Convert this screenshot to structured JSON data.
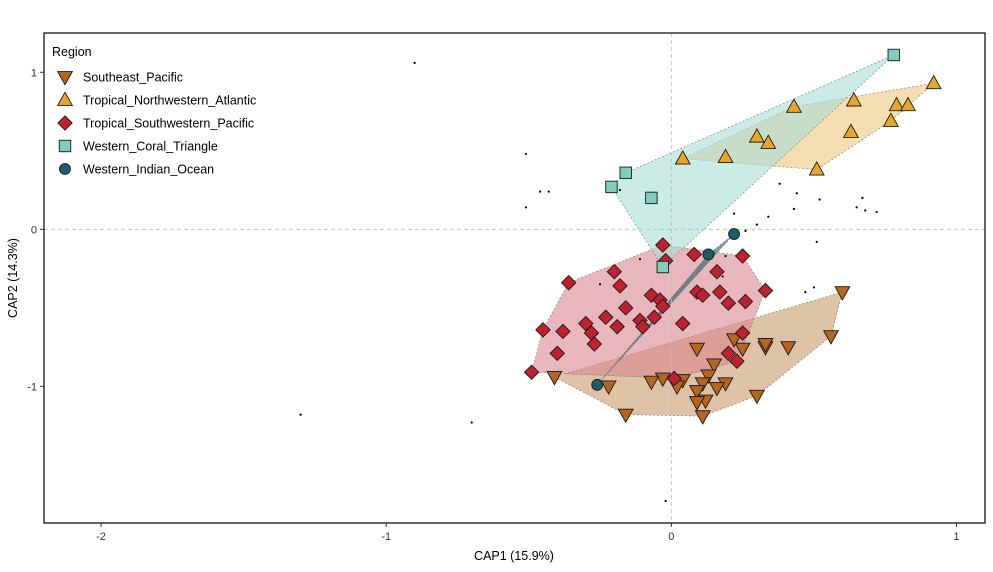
{
  "chart_data": {
    "type": "scatter",
    "xlabel": "CAP1 (15.9%)",
    "ylabel": "CAP2 (14.3%)",
    "xlim": [
      -2.2,
      1.1
    ],
    "ylim": [
      -1.87,
      1.25
    ],
    "xticks": [
      -2,
      -1,
      0,
      1
    ],
    "xtick_labels": [
      "-2",
      "-1",
      "0",
      "1"
    ],
    "yticks": [
      -1,
      0,
      1
    ],
    "ytick_labels": [
      "-1",
      "0",
      "1"
    ],
    "reference_lines": {
      "x": 0,
      "y": 0,
      "style": "dashed"
    },
    "grid": false,
    "legend": {
      "title": "Region",
      "position": "top-left inside"
    },
    "series": [
      {
        "name": "Southeast_Pacific",
        "marker": "triangle-down",
        "fill": "#B5651D",
        "hull_fill": "#C89A6A",
        "points": [
          [
            0.6,
            -0.4
          ],
          [
            0.56,
            -0.68
          ],
          [
            0.33,
            -0.75
          ],
          [
            0.25,
            -0.76
          ],
          [
            0.41,
            -0.75
          ],
          [
            0.33,
            -0.73
          ],
          [
            0.22,
            -0.7
          ],
          [
            0.09,
            -0.76
          ],
          [
            0.15,
            -0.86
          ],
          [
            0.13,
            -0.93
          ],
          [
            0.04,
            -0.96
          ],
          [
            0.11,
            -0.98
          ],
          [
            0.19,
            -0.98
          ],
          [
            0.09,
            -1.03
          ],
          [
            0.12,
            -1.09
          ],
          [
            0.3,
            -1.06
          ],
          [
            0.16,
            -1.01
          ],
          [
            -0.03,
            -0.95
          ],
          [
            -0.07,
            -0.97
          ],
          [
            -0.22,
            -1.0
          ],
          [
            -0.41,
            -0.94
          ],
          [
            -0.16,
            -1.18
          ],
          [
            0.11,
            -1.19
          ],
          [
            0.09,
            -1.1
          ],
          [
            0.02,
            -1.0
          ]
        ]
      },
      {
        "name": "Tropical_Northwestern_Atlantic",
        "marker": "triangle-up",
        "fill": "#E8A628",
        "hull_fill": "#F0C77E",
        "points": [
          [
            0.92,
            0.93
          ],
          [
            0.79,
            0.79
          ],
          [
            0.83,
            0.79
          ],
          [
            0.77,
            0.69
          ],
          [
            0.64,
            0.82
          ],
          [
            0.63,
            0.62
          ],
          [
            0.43,
            0.78
          ],
          [
            0.3,
            0.59
          ],
          [
            0.34,
            0.55
          ],
          [
            0.19,
            0.46
          ],
          [
            0.51,
            0.38
          ],
          [
            0.04,
            0.45
          ]
        ]
      },
      {
        "name": "Tropical_Southwestern_Pacific",
        "marker": "diamond",
        "fill": "#C0212F",
        "hull_fill": "#D9878F",
        "points": [
          [
            -0.03,
            -0.1
          ],
          [
            -0.02,
            -0.2
          ],
          [
            0.08,
            -0.16
          ],
          [
            0.16,
            -0.27
          ],
          [
            0.25,
            -0.17
          ],
          [
            -0.2,
            -0.27
          ],
          [
            -0.36,
            -0.34
          ],
          [
            -0.18,
            -0.36
          ],
          [
            -0.07,
            -0.42
          ],
          [
            -0.04,
            -0.45
          ],
          [
            0.09,
            -0.4
          ],
          [
            0.11,
            -0.42
          ],
          [
            0.17,
            -0.4
          ],
          [
            0.33,
            -0.39
          ],
          [
            0.26,
            -0.46
          ],
          [
            0.2,
            -0.47
          ],
          [
            -0.16,
            -0.5
          ],
          [
            -0.23,
            -0.56
          ],
          [
            -0.19,
            -0.62
          ],
          [
            -0.11,
            -0.58
          ],
          [
            -0.06,
            -0.56
          ],
          [
            -0.3,
            -0.6
          ],
          [
            -0.28,
            -0.66
          ],
          [
            -0.38,
            -0.65
          ],
          [
            -0.45,
            -0.64
          ],
          [
            -0.27,
            -0.73
          ],
          [
            -0.03,
            -0.49
          ],
          [
            0.04,
            -0.6
          ],
          [
            0.25,
            -0.66
          ],
          [
            0.23,
            -0.84
          ],
          [
            -0.4,
            -0.79
          ],
          [
            -0.49,
            -0.91
          ],
          [
            -0.1,
            -0.62
          ],
          [
            0.01,
            -0.95
          ],
          [
            0.2,
            -0.79
          ]
        ]
      },
      {
        "name": "Western_Coral_Triangle",
        "marker": "square",
        "fill": "#7FCDBB",
        "hull_fill": "#A8DDD6",
        "points": [
          [
            0.78,
            1.11
          ],
          [
            -0.16,
            0.36
          ],
          [
            -0.21,
            0.27
          ],
          [
            -0.07,
            0.2
          ],
          [
            -0.03,
            -0.24
          ]
        ]
      },
      {
        "name": "Western_Indian_Ocean",
        "marker": "circle",
        "fill": "#1B5E6B",
        "hull_fill": "#1B5E6B",
        "points": [
          [
            0.22,
            -0.03
          ],
          [
            0.13,
            -0.16
          ],
          [
            -0.26,
            -0.99
          ]
        ]
      }
    ],
    "background_points": [
      [
        -0.9,
        1.06
      ],
      [
        -0.51,
        0.48
      ],
      [
        -0.46,
        0.24
      ],
      [
        -0.43,
        0.24
      ],
      [
        -0.51,
        0.14
      ],
      [
        -1.3,
        -1.18
      ],
      [
        -0.7,
        -1.23
      ],
      [
        0.22,
        0.1
      ],
      [
        0.34,
        0.08
      ],
      [
        0.3,
        0.03
      ],
      [
        0.38,
        0.29
      ],
      [
        0.44,
        0.23
      ],
      [
        0.43,
        0.13
      ],
      [
        0.52,
        0.19
      ],
      [
        0.67,
        0.2
      ],
      [
        0.68,
        0.12
      ],
      [
        0.72,
        0.11
      ],
      [
        0.65,
        0.14
      ],
      [
        0.51,
        -0.08
      ],
      [
        0.26,
        -0.01
      ],
      [
        0.19,
        -0.17
      ],
      [
        0.5,
        -0.37
      ],
      [
        0.18,
        -0.3
      ],
      [
        0.47,
        -0.4
      ],
      [
        -0.11,
        -0.19
      ],
      [
        -0.25,
        -0.35
      ],
      [
        -0.18,
        0.25
      ],
      [
        -0.02,
        -1.73
      ]
    ]
  }
}
